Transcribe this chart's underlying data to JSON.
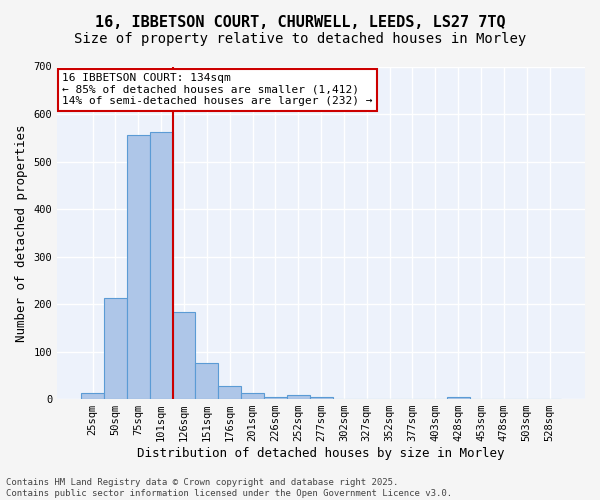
{
  "title_line1": "16, IBBETSON COURT, CHURWELL, LEEDS, LS27 7TQ",
  "title_line2": "Size of property relative to detached houses in Morley",
  "xlabel": "Distribution of detached houses by size in Morley",
  "ylabel": "Number of detached properties",
  "bar_values": [
    12,
    212,
    555,
    562,
    183,
    75,
    28,
    12,
    5,
    8,
    5,
    0,
    0,
    0,
    0,
    0,
    4,
    0,
    0,
    0,
    0
  ],
  "bar_labels": [
    "25sqm",
    "50sqm",
    "75sqm",
    "101sqm",
    "126sqm",
    "151sqm",
    "176sqm",
    "201sqm",
    "226sqm",
    "252sqm",
    "277sqm",
    "302sqm",
    "327sqm",
    "352sqm",
    "377sqm",
    "403sqm",
    "428sqm",
    "453sqm",
    "478sqm",
    "503sqm",
    "528sqm"
  ],
  "bar_color": "#aec6e8",
  "bar_edge_color": "#5b9bd5",
  "vline_x": 3.5,
  "vline_color": "#cc0000",
  "annotation_text": "16 IBBETSON COURT: 134sqm\n← 85% of detached houses are smaller (1,412)\n14% of semi-detached houses are larger (232) →",
  "annotation_box_color": "#cc0000",
  "ylim": [
    0,
    700
  ],
  "yticks": [
    0,
    100,
    200,
    300,
    400,
    500,
    600,
    700
  ],
  "background_color": "#edf2fb",
  "grid_color": "#ffffff",
  "footer_text": "Contains HM Land Registry data © Crown copyright and database right 2025.\nContains public sector information licensed under the Open Government Licence v3.0.",
  "title_fontsize": 11,
  "subtitle_fontsize": 10,
  "axis_label_fontsize": 9,
  "tick_fontsize": 7.5,
  "annotation_fontsize": 8,
  "footer_fontsize": 6.5
}
